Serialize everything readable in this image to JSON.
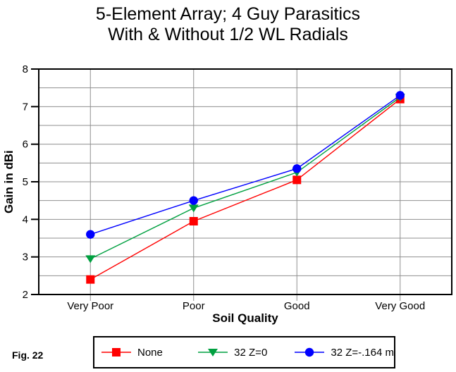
{
  "figure_label": "Fig. 22",
  "chart_data": {
    "type": "line",
    "title_lines": [
      "5-Element Array; 4 Guy Parasitics",
      "With & Without 1/2 WL Radials"
    ],
    "xlabel": "Soil Quality",
    "ylabel": "Gain in dBi",
    "categories": [
      "Very Poor",
      "Poor",
      "Good",
      "Very Good"
    ],
    "ylim": [
      2,
      8
    ],
    "ytick_step": 1,
    "gridline_step": 0.5,
    "grid": true,
    "legend_position": "bottom",
    "colors": {
      "grid": "#8f8f8f",
      "axis": "#000000",
      "background": "#ffffff"
    },
    "series": [
      {
        "name": "None",
        "color": "#ff0000",
        "marker": "square",
        "values": [
          2.4,
          3.95,
          5.05,
          7.2
        ]
      },
      {
        "name": "32 Z=0",
        "color": "#00a040",
        "marker": "triangle-down",
        "values": [
          2.95,
          4.3,
          5.25,
          7.25
        ]
      },
      {
        "name": "32 Z=-.164 m",
        "color": "#0000ff",
        "marker": "circle",
        "values": [
          3.6,
          4.5,
          5.35,
          7.3
        ]
      }
    ]
  }
}
